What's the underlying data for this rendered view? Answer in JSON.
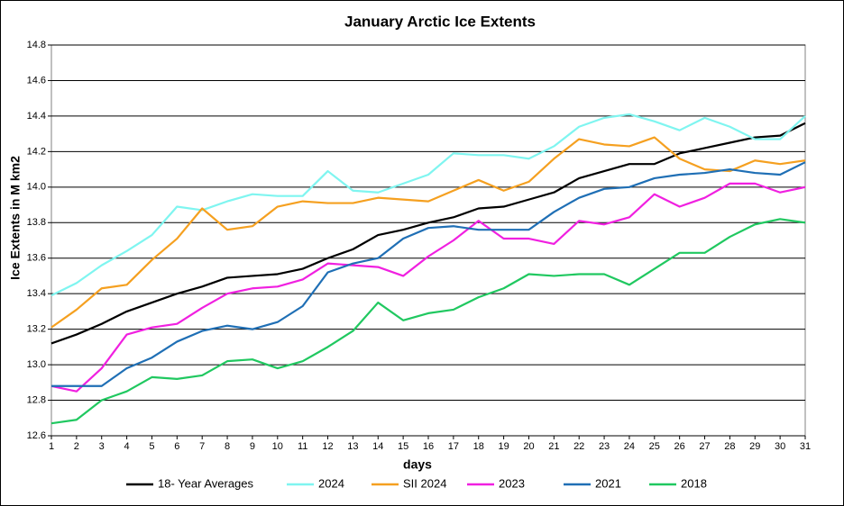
{
  "chart_data": {
    "type": "line",
    "title": "January Arctic Ice Extents",
    "x_label": "days",
    "y_label": "Ice Extents in M km2",
    "x": [
      1,
      2,
      3,
      4,
      5,
      6,
      7,
      8,
      9,
      10,
      11,
      12,
      13,
      14,
      15,
      16,
      17,
      18,
      19,
      20,
      21,
      22,
      23,
      24,
      25,
      26,
      27,
      28,
      29,
      30,
      31
    ],
    "xlim": [
      1,
      31
    ],
    "ylim": [
      12.6,
      14.8
    ],
    "yticks": [
      12.6,
      12.8,
      {
        "value": 13,
        "label": "13.0"
      },
      13.2,
      13.4,
      13.6,
      13.8,
      {
        "value": 14,
        "label": "14.0"
      },
      14.2,
      14.4,
      14.6,
      14.8
    ],
    "grid": true,
    "series": [
      {
        "name": "18- Year Averages",
        "color": "#000000",
        "values": [
          13.12,
          13.17,
          13.23,
          13.3,
          13.35,
          13.4,
          13.44,
          13.49,
          13.5,
          13.51,
          13.54,
          13.6,
          13.65,
          13.73,
          13.76,
          13.8,
          13.83,
          13.88,
          13.89,
          13.93,
          13.97,
          14.05,
          14.09,
          14.13,
          14.13,
          14.19,
          14.22,
          14.25,
          14.28,
          14.29,
          14.36
        ]
      },
      {
        "name": "2024",
        "color": "#7ff5f0",
        "values": [
          13.39,
          13.46,
          13.56,
          13.64,
          13.73,
          13.89,
          13.87,
          13.92,
          13.96,
          13.95,
          13.95,
          14.09,
          13.98,
          13.97,
          14.02,
          14.07,
          14.19,
          14.18,
          14.18,
          14.16,
          14.23,
          14.34,
          14.39,
          14.41,
          14.37,
          14.32,
          14.39,
          14.34,
          14.27,
          14.27,
          14.4
        ]
      },
      {
        "name": "SII 2024",
        "color": "#f5a020",
        "values": [
          13.21,
          13.31,
          13.43,
          13.45,
          13.59,
          13.71,
          13.88,
          13.76,
          13.78,
          13.89,
          13.92,
          13.91,
          13.91,
          13.94,
          13.93,
          13.92,
          13.98,
          14.04,
          13.98,
          14.03,
          14.16,
          14.27,
          14.24,
          14.23,
          14.28,
          14.16,
          14.1,
          14.09,
          14.15,
          14.13,
          14.15
        ]
      },
      {
        "name": "2023",
        "color": "#f020e0",
        "values": [
          12.88,
          12.85,
          12.98,
          13.17,
          13.21,
          13.23,
          13.32,
          13.4,
          13.43,
          13.44,
          13.48,
          13.57,
          13.56,
          13.55,
          13.5,
          13.61,
          13.7,
          13.81,
          13.71,
          13.71,
          13.68,
          13.81,
          13.79,
          13.83,
          13.96,
          13.89,
          13.94,
          14.02,
          14.02,
          13.97,
          14.0
        ]
      },
      {
        "name": "2021",
        "color": "#1f6fb5",
        "values": [
          12.88,
          12.88,
          12.88,
          12.98,
          13.04,
          13.13,
          13.19,
          13.22,
          13.2,
          13.24,
          13.33,
          13.52,
          13.57,
          13.6,
          13.71,
          13.77,
          13.78,
          13.76,
          13.76,
          13.76,
          13.86,
          13.94,
          13.99,
          14.0,
          14.05,
          14.07,
          14.08,
          14.1,
          14.08,
          14.07,
          14.14
        ]
      },
      {
        "name": "2018",
        "color": "#20c860",
        "values": [
          12.67,
          12.69,
          12.8,
          12.85,
          12.93,
          12.92,
          12.94,
          13.02,
          13.03,
          12.98,
          13.02,
          13.1,
          13.19,
          13.35,
          13.25,
          13.29,
          13.31,
          13.38,
          13.43,
          13.51,
          13.5,
          13.51,
          13.51,
          13.45,
          13.54,
          13.63,
          13.63,
          13.72,
          13.79,
          13.82,
          13.8
        ]
      }
    ]
  }
}
